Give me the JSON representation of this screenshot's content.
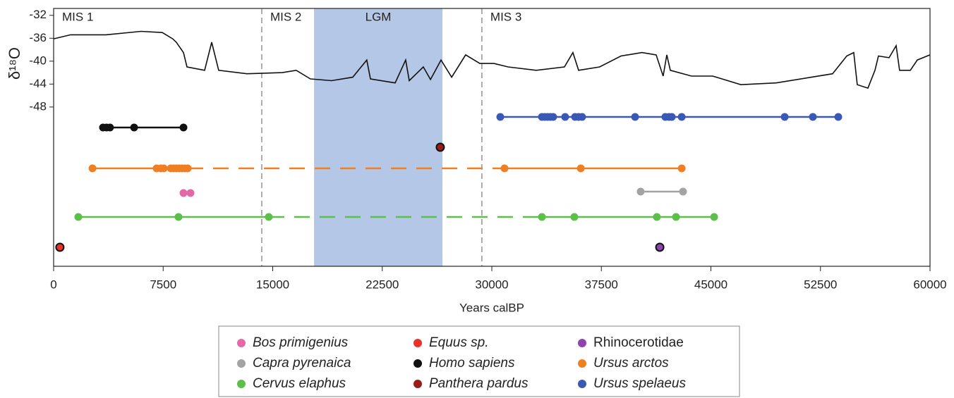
{
  "chart_data": {
    "type": "line",
    "y_label": "δ¹⁸O",
    "x_label": "Years calBP",
    "xlim": [
      0,
      60000
    ],
    "xticks": [
      0,
      7500,
      15000,
      22500,
      30000,
      37500,
      45000,
      52500,
      60000
    ],
    "ylim": [
      -75.8,
      -30.8
    ],
    "yticks": [
      -32,
      -36,
      -40,
      -44,
      -48
    ],
    "color": "#111111",
    "x": [
      0,
      1160,
      3580,
      5990,
      7440,
      8150,
      8400,
      8890,
      9130,
      10340,
      10820,
      11300,
      13230,
      15650,
      16610,
      17580,
      19030,
      20480,
      21440,
      21690,
      23380,
      24100,
      24350,
      25310,
      25800,
      26520,
      27250,
      28210,
      29180,
      30140,
      31110,
      33040,
      34970,
      35550,
      35940,
      37380,
      38840,
      40280,
      41250,
      41730,
      41980,
      42220,
      43670,
      45120,
      47050,
      49470,
      51880,
      53330,
      54300,
      54780,
      55020,
      55750,
      56230,
      56470,
      57200,
      57680,
      57920,
      58650,
      59130,
      60000
    ],
    "values": [
      -36.1,
      -35.4,
      -35.4,
      -34.8,
      -35.0,
      -36.1,
      -36.7,
      -38.5,
      -41.0,
      -41.6,
      -36.7,
      -41.6,
      -42.2,
      -42.0,
      -41.6,
      -43.1,
      -43.4,
      -42.8,
      -39.8,
      -43.1,
      -43.8,
      -39.8,
      -43.4,
      -41.0,
      -43.2,
      -39.8,
      -42.8,
      -38.9,
      -40.4,
      -40.4,
      -41.0,
      -41.6,
      -41.0,
      -38.5,
      -41.6,
      -41.0,
      -39.1,
      -38.5,
      -38.9,
      -42.6,
      -38.9,
      -41.6,
      -42.6,
      -42.6,
      -44.1,
      -43.8,
      -42.8,
      -42.2,
      -39.1,
      -38.5,
      -44.1,
      -44.7,
      -41.6,
      -39.1,
      -39.4,
      -37.3,
      -41.6,
      -41.6,
      -39.8,
      -38.9
    ],
    "periods": [
      {
        "label": "MIS 1",
        "start": 0
      },
      {
        "label": "MIS 2",
        "start": 14250
      },
      {
        "label": "MIS 3",
        "start": 29320
      }
    ],
    "lgm": {
      "label": "LGM",
      "range": [
        17830,
        26620
      ]
    },
    "taxa": [
      {
        "name": "Bos primigenius",
        "color": "#e667a8",
        "italic": true,
        "x": [
          8890,
          9370
        ]
      },
      {
        "name": "Capra pyrenaica",
        "color": "#a3a3a3",
        "italic": true,
        "x": [
          40190,
          43090
        ]
      },
      {
        "name": "Cervus elaphus",
        "color": "#5cbf4a",
        "italic": true,
        "x": [
          1690,
          8550,
          14730,
          33430,
          35650,
          41300,
          42610,
          45220
        ]
      },
      {
        "name": "Equus sp.",
        "color": "#e8322b",
        "italic": true,
        "x": [
          430
        ]
      },
      {
        "name": "Homo sapiens",
        "color": "#111111",
        "italic": true,
        "x": [
          3380,
          3620,
          3860,
          5510,
          8890
        ]
      },
      {
        "name": "Panthera pardus",
        "color": "#9b1b1b",
        "italic": true,
        "x": [
          26470
        ]
      },
      {
        "name": "Rhinocerotidae",
        "color": "#8e44ad",
        "italic": false,
        "x": [
          41500
        ]
      },
      {
        "name": "Ursus arctos",
        "color": "#f07f22",
        "italic": true,
        "x": [
          2660,
          7050,
          7340,
          7540,
          8020,
          8210,
          8410,
          8600,
          8790,
          8990,
          9180,
          30870,
          36090,
          43000
        ]
      },
      {
        "name": "Ursus spelaeus",
        "color": "#3a58b5",
        "italic": true,
        "x": [
          30580,
          33430,
          33620,
          33820,
          34010,
          34200,
          35020,
          35700,
          35940,
          36180,
          39810,
          41880,
          42130,
          42320,
          43000,
          50050,
          51980,
          53720
        ]
      }
    ]
  }
}
